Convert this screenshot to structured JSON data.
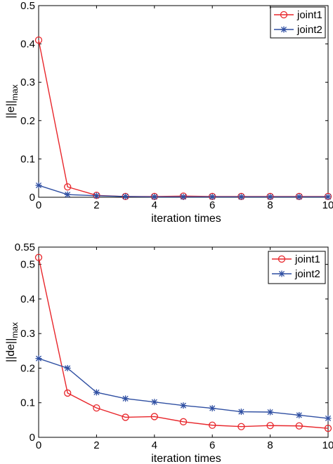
{
  "chart_data": [
    {
      "type": "line",
      "xlabel": "iteration times",
      "ylabel_main": "||e||",
      "ylabel_sub": "max",
      "xlim": [
        0,
        10
      ],
      "ylim": [
        0,
        0.5
      ],
      "xticks": [
        0,
        2,
        4,
        6,
        8,
        10
      ],
      "yticks": [
        0,
        0.1,
        0.2,
        0.3,
        0.4,
        0.5
      ],
      "ytick_labels": [
        "0",
        "0.1",
        "0.2",
        "0.3",
        "0.4",
        "0.5"
      ],
      "grid": false,
      "legend_position": "top-right",
      "x": [
        0,
        1,
        2,
        3,
        4,
        5,
        6,
        7,
        8,
        9,
        10
      ],
      "series": [
        {
          "name": "joint1",
          "color": "#e8262b",
          "marker": "circle",
          "values": [
            0.41,
            0.027,
            0.005,
            0.002,
            0.002,
            0.003,
            0.002,
            0.002,
            0.002,
            0.002,
            0.002
          ]
        },
        {
          "name": "joint2",
          "color": "#2f4fa2",
          "marker": "asterisk",
          "values": [
            0.031,
            0.007,
            0.004,
            0.002,
            0.001,
            0.001,
            0.001,
            0.001,
            0.001,
            0.001,
            0.001
          ]
        }
      ]
    },
    {
      "type": "line",
      "xlabel": "iteration times",
      "ylabel_main": "||de||",
      "ylabel_sub": "max",
      "xlim": [
        0,
        10
      ],
      "ylim": [
        0,
        0.55
      ],
      "xticks": [
        0,
        2,
        4,
        6,
        8,
        10
      ],
      "yticks": [
        0,
        0.1,
        0.2,
        0.3,
        0.4,
        0.5,
        0.55
      ],
      "ytick_labels": [
        "0",
        "0.1",
        "0.2",
        "0.3",
        "0.4",
        "0.5",
        "0.55"
      ],
      "grid": false,
      "legend_position": "top-right",
      "x": [
        0,
        1,
        2,
        3,
        4,
        5,
        6,
        7,
        8,
        9,
        10
      ],
      "series": [
        {
          "name": "joint1",
          "color": "#e8262b",
          "marker": "circle",
          "values": [
            0.52,
            0.128,
            0.085,
            0.058,
            0.06,
            0.045,
            0.035,
            0.031,
            0.034,
            0.033,
            0.026
          ]
        },
        {
          "name": "joint2",
          "color": "#2f4fa2",
          "marker": "asterisk",
          "values": [
            0.228,
            0.2,
            0.13,
            0.112,
            0.102,
            0.092,
            0.084,
            0.074,
            0.073,
            0.064,
            0.055
          ]
        }
      ]
    }
  ]
}
